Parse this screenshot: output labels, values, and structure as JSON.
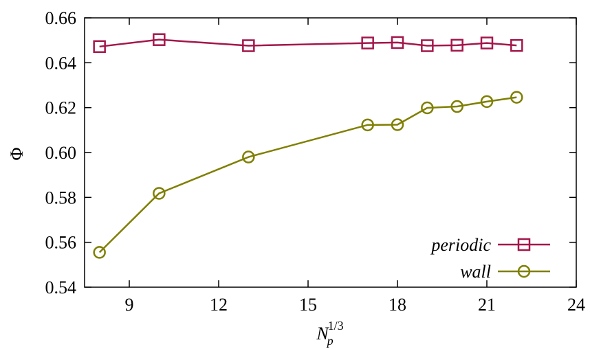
{
  "chart_data": {
    "type": "line",
    "xlabel": "N_p^{1/3}",
    "ylabel": "Φ",
    "xlim": [
      7.5,
      24
    ],
    "ylim": [
      0.54,
      0.66
    ],
    "xticks": [
      9,
      12,
      15,
      18,
      21,
      24
    ],
    "yticks": [
      0.54,
      0.56,
      0.58,
      0.6,
      0.62,
      0.64,
      0.66
    ],
    "xtick_labels": [
      "9",
      "12",
      "15",
      "18",
      "21",
      "24"
    ],
    "ytick_labels": [
      "0.54",
      "0.56",
      "0.58",
      "0.60",
      "0.62",
      "0.64",
      "0.66"
    ],
    "legend_position": "bottom-right",
    "grid": false,
    "series": [
      {
        "name": "periodic",
        "color": "#a3174b",
        "marker": "square",
        "x": [
          8,
          10,
          13,
          17,
          18,
          19,
          20,
          21,
          22
        ],
        "y": [
          0.6472,
          0.6503,
          0.6476,
          0.6488,
          0.649,
          0.6476,
          0.6478,
          0.6488,
          0.6477
        ]
      },
      {
        "name": "wall",
        "color": "#7f7f00",
        "marker": "circle",
        "x": [
          8,
          10,
          13,
          17,
          18,
          19,
          20,
          21,
          22
        ],
        "y": [
          0.5555,
          0.5818,
          0.598,
          0.6123,
          0.6124,
          0.6199,
          0.6205,
          0.6227,
          0.6246
        ]
      }
    ]
  }
}
